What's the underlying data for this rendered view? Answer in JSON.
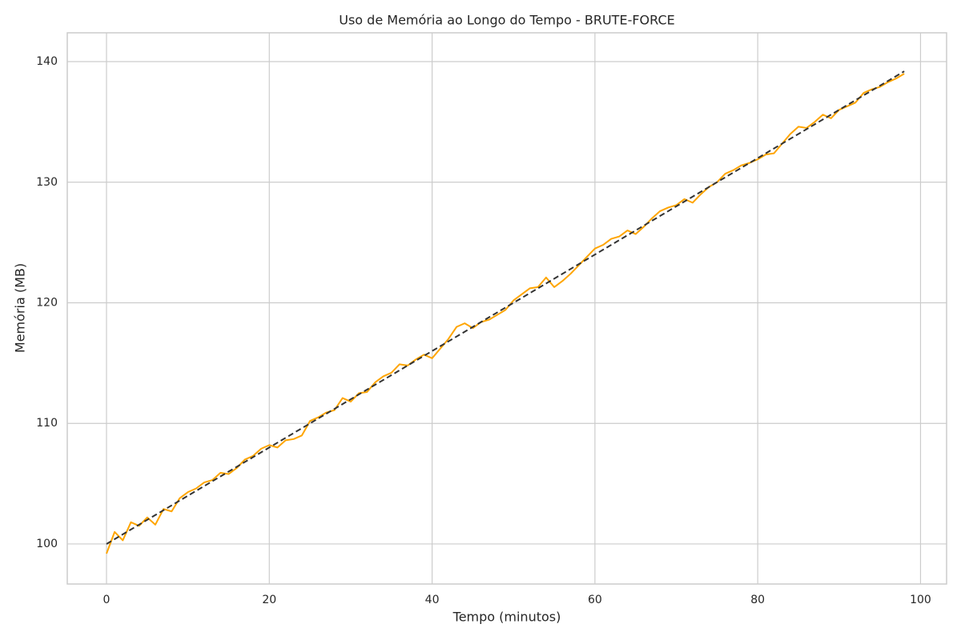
{
  "chart_data": {
    "type": "line",
    "title": "Uso de Memória ao Longo do Tempo - BRUTE-FORCE",
    "xlabel": "Tempo (minutos)",
    "ylabel": "Memória (MB)",
    "xlim": [
      -4.82,
      103.2
    ],
    "ylim": [
      96.68,
      142.39
    ],
    "xticks": [
      0,
      20,
      40,
      60,
      80,
      100
    ],
    "yticks": [
      100,
      110,
      120,
      130,
      140
    ],
    "grid": true,
    "series": [
      {
        "color": "#ffa500",
        "linestyle": "solid",
        "x": [
          0,
          1,
          2,
          3,
          4,
          5,
          6,
          7,
          8,
          9,
          10,
          11,
          12,
          13,
          14,
          15,
          16,
          17,
          18,
          19,
          20,
          21,
          22,
          23,
          24,
          25,
          26,
          27,
          28,
          29,
          30,
          31,
          32,
          33,
          34,
          35,
          36,
          37,
          38,
          39,
          40,
          41,
          42,
          43,
          44,
          45,
          46,
          47,
          48,
          49,
          50,
          51,
          52,
          53,
          54,
          55,
          56,
          57,
          58,
          59,
          60,
          61,
          62,
          63,
          64,
          65,
          66,
          67,
          68,
          69,
          70,
          71,
          72,
          73,
          74,
          75,
          76,
          77,
          78,
          79,
          80,
          81,
          82,
          83,
          84,
          85,
          86,
          87,
          88,
          89,
          90,
          91,
          92,
          93,
          94,
          95,
          96,
          97,
          98
        ],
        "values": [
          99.2,
          101.0,
          100.3,
          101.8,
          101.5,
          102.2,
          101.6,
          102.9,
          102.7,
          103.8,
          104.3,
          104.6,
          105.1,
          105.3,
          105.9,
          105.8,
          106.3,
          107.0,
          107.3,
          107.9,
          108.2,
          108.0,
          108.6,
          108.7,
          109.0,
          110.2,
          110.5,
          110.9,
          111.1,
          112.1,
          111.8,
          112.5,
          112.6,
          113.4,
          113.9,
          114.2,
          114.9,
          114.8,
          115.3,
          115.7,
          115.4,
          116.2,
          117.0,
          118.0,
          118.3,
          117.9,
          118.4,
          118.6,
          119.0,
          119.4,
          120.2,
          120.7,
          121.2,
          121.3,
          122.1,
          121.3,
          121.8,
          122.4,
          123.1,
          123.8,
          124.5,
          124.8,
          125.3,
          125.5,
          126.0,
          125.7,
          126.3,
          127.0,
          127.6,
          127.9,
          128.1,
          128.6,
          128.3,
          129.0,
          129.6,
          130.0,
          130.7,
          131.0,
          131.4,
          131.6,
          131.9,
          132.3,
          132.4,
          133.2,
          134.0,
          134.6,
          134.5,
          135.0,
          135.6,
          135.3,
          136.0,
          136.3,
          136.6,
          137.4,
          137.7,
          137.9,
          138.3,
          138.6,
          139.0
        ]
      },
      {
        "color": "#333333",
        "linestyle": "dashed",
        "x": [
          0,
          98
        ],
        "values": [
          100.0,
          139.2
        ]
      }
    ]
  }
}
